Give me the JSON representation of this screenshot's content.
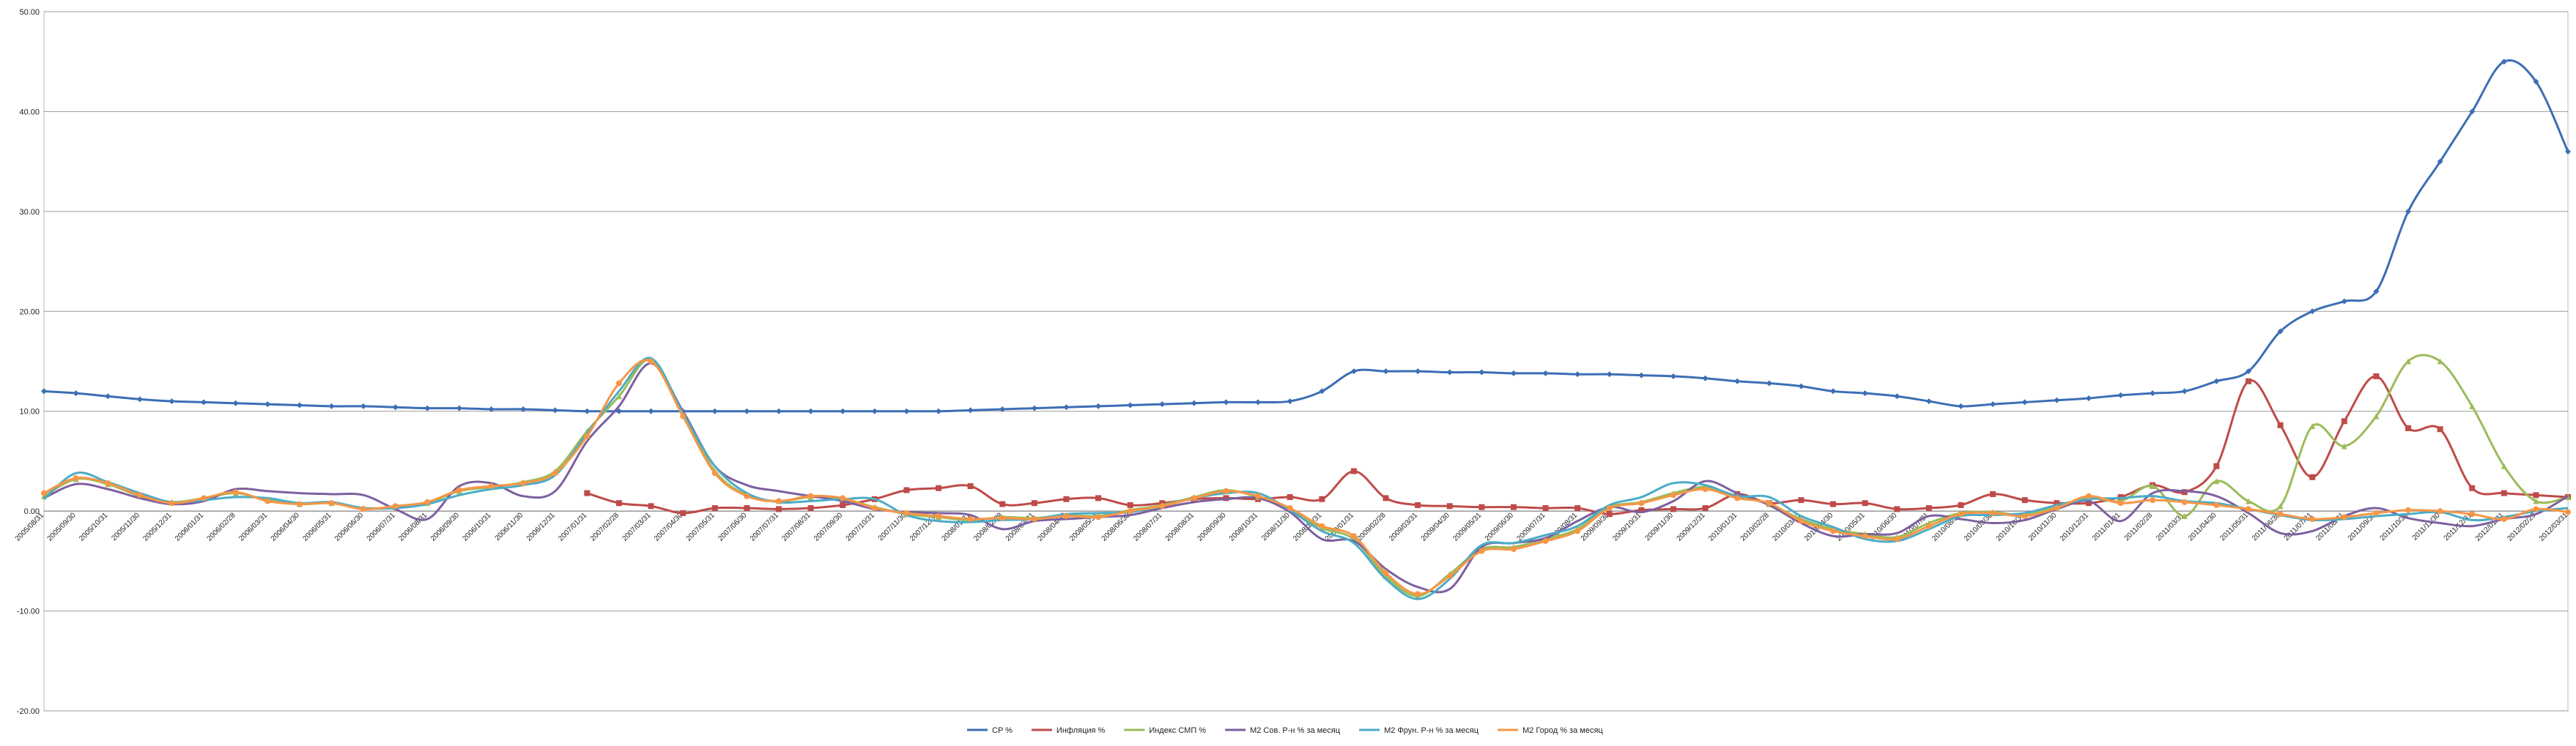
{
  "chart_data": {
    "type": "line",
    "categories": [
      "2005/08/31",
      "2005/09/30",
      "2005/10/31",
      "2005/11/30",
      "2005/12/31",
      "2006/01/31",
      "2006/02/28",
      "2006/03/31",
      "2006/04/30",
      "2006/05/31",
      "2006/06/30",
      "2006/07/31",
      "2006/08/31",
      "2006/09/30",
      "2006/10/31",
      "2006/11/30",
      "2006/12/31",
      "2007/01/31",
      "2007/02/28",
      "2007/03/31",
      "2007/04/30",
      "2007/05/31",
      "2007/06/30",
      "2007/07/31",
      "2007/08/31",
      "2007/09/30",
      "2007/10/31",
      "2007/11/30",
      "2007/12/31",
      "2008/01/31",
      "2008/02/29",
      "2008/03/31",
      "2008/04/30",
      "2008/05/31",
      "2008/06/30",
      "2008/07/31",
      "2008/08/31",
      "2008/09/30",
      "2008/10/31",
      "2008/11/30",
      "2008/12/31",
      "2009/01/31",
      "2009/02/28",
      "2009/03/31",
      "2009/04/30",
      "2009/05/31",
      "2009/06/30",
      "2009/07/31",
      "2009/08/31",
      "2009/09/30",
      "2009/10/31",
      "2009/11/30",
      "2009/12/31",
      "2010/01/31",
      "2010/02/28",
      "2010/03/31",
      "2010/04/30",
      "2010/05/31",
      "2010/06/30",
      "2010/07/31",
      "2010/08/31",
      "2010/09/30",
      "2010/10/31",
      "2010/11/30",
      "2010/12/31",
      "2011/01/31",
      "2011/02/28",
      "2011/03/31",
      "2011/04/30",
      "2011/05/31",
      "2011/06/30",
      "2011/07/31",
      "2011/08/31",
      "2011/09/30",
      "2011/10/31",
      "2011/11/30",
      "2011/12/31",
      "2012/01/31",
      "2012/02/29",
      "2012/03/31"
    ],
    "series": [
      {
        "name": "CP %",
        "color": "#3c6eb4",
        "marker": "diamond",
        "values": [
          12,
          11.8,
          11.5,
          11.2,
          11,
          10.9,
          10.8,
          10.7,
          10.6,
          10.5,
          10.5,
          10.4,
          10.3,
          10.3,
          10.2,
          10.2,
          10.1,
          10,
          10,
          10,
          10,
          10,
          10,
          10,
          10,
          10,
          10,
          10,
          10,
          10.1,
          10.2,
          10.3,
          10.4,
          10.5,
          10.6,
          10.7,
          10.8,
          10.9,
          10.9,
          11,
          12,
          14,
          14,
          14,
          13.9,
          13.9,
          13.8,
          13.8,
          13.7,
          13.7,
          13.6,
          13.5,
          13.3,
          13,
          12.8,
          12.5,
          12,
          11.8,
          11.5,
          11,
          10.5,
          10.7,
          10.9,
          11.1,
          11.3,
          11.6,
          11.8,
          12,
          13,
          14,
          18,
          20,
          21,
          22,
          30,
          35,
          40,
          45,
          43,
          36
        ]
      },
      {
        "name": "Инфляция %",
        "color": "#be4b48",
        "marker": "square",
        "values": [
          null,
          null,
          null,
          null,
          null,
          null,
          null,
          null,
          null,
          null,
          null,
          null,
          null,
          null,
          null,
          null,
          null,
          1.8,
          0.8,
          0.5,
          -0.2,
          0.3,
          0.3,
          0.2,
          0.3,
          0.6,
          1.2,
          2.1,
          2.3,
          2.5,
          0.7,
          0.8,
          1.2,
          1.3,
          0.6,
          0.8,
          1.2,
          1.3,
          1.2,
          1.4,
          1.2,
          4.0,
          1.3,
          0.6,
          0.5,
          0.4,
          0.4,
          0.3,
          0.3,
          -0.3,
          0.1,
          0.2,
          0.3,
          1.7,
          0.8,
          1.1,
          0.7,
          0.8,
          0.2,
          0.3,
          0.6,
          1.7,
          1.1,
          0.8,
          0.8,
          1.4,
          2.6,
          1.9,
          4.5,
          13.0,
          8.6,
          3.4,
          9.0,
          13.5,
          8.3,
          8.2,
          2.3,
          1.8,
          1.6,
          1.4
        ]
      },
      {
        "name": "Индекс  СМП %",
        "color": "#9bbb59",
        "marker": "triangle",
        "values": [
          1.5,
          3.2,
          2.7,
          1.5,
          0.9,
          1.3,
          1.8,
          1.1,
          0.7,
          0.8,
          0.3,
          0.4,
          0.8,
          2.0,
          2.4,
          2.9,
          4.0,
          8.0,
          11.5,
          15.2,
          9.8,
          4.0,
          1.6,
          1.0,
          1.4,
          1.2,
          0.4,
          -0.3,
          -0.6,
          -0.9,
          -0.6,
          -0.7,
          -0.4,
          -0.5,
          0.1,
          0.6,
          1.4,
          2.1,
          1.4,
          0.2,
          -1.7,
          -2.8,
          -6.5,
          -8.5,
          -6.3,
          -3.8,
          -3.6,
          -2.8,
          -1.8,
          0.4,
          0.9,
          1.8,
          2.4,
          1.5,
          0.7,
          -0.8,
          -1.8,
          -2.3,
          -2.6,
          -1.2,
          -0.2,
          -0.1,
          -0.4,
          0.5,
          1.3,
          1.0,
          2.5,
          -0.5,
          3.0,
          1.0,
          0.5,
          8.5,
          6.5,
          9.5,
          15.0,
          15.0,
          10.5,
          4.5,
          1.0,
          1.4
        ]
      },
      {
        "name": "М2 Сов. Р-н % за месяц",
        "color": "#7d60a0",
        "marker": "none",
        "values": [
          1.3,
          2.7,
          2.2,
          1.3,
          0.7,
          1.0,
          2.2,
          2.0,
          1.8,
          1.7,
          1.6,
          0.2,
          -0.8,
          2.5,
          2.8,
          1.5,
          2.0,
          7.0,
          10.5,
          14.8,
          10.0,
          4.5,
          2.6,
          2.0,
          1.5,
          1.0,
          0.2,
          -0.1,
          -0.2,
          -0.4,
          -1.8,
          -1.0,
          -0.8,
          -0.6,
          -0.4,
          0.3,
          0.9,
          1.2,
          1.3,
          -0.1,
          -2.8,
          -3.0,
          -5.8,
          -7.6,
          -7.8,
          -3.6,
          -3.2,
          -2.7,
          -1.0,
          0.4,
          -0.1,
          1.0,
          3.0,
          1.8,
          0.6,
          -1.2,
          -2.5,
          -2.3,
          -2.2,
          -0.5,
          -0.8,
          -1.2,
          -0.9,
          0.2,
          1.0,
          -1.0,
          1.8,
          2.0,
          1.5,
          -0.2,
          -2.2,
          -2.0,
          -0.5,
          0.3,
          -0.7,
          -1.2,
          -1.5,
          -0.8,
          -0.3,
          1.5
        ]
      },
      {
        "name": "М2 Фрун. Р-н % за месяц",
        "color": "#4bacc6",
        "marker": "none",
        "values": [
          1.2,
          3.8,
          2.9,
          1.8,
          0.9,
          1.1,
          1.4,
          1.3,
          0.8,
          0.9,
          0.3,
          0.3,
          0.7,
          1.6,
          2.2,
          2.6,
          3.6,
          7.8,
          12.0,
          15.3,
          9.8,
          4.5,
          1.8,
          0.9,
          1.0,
          1.2,
          1.2,
          -0.4,
          -1.0,
          -1.1,
          -0.9,
          -0.8,
          -0.3,
          -0.2,
          -0.1,
          0.5,
          1.3,
          1.8,
          1.8,
          0.1,
          -2.0,
          -3.2,
          -6.8,
          -8.8,
          -6.8,
          -3.4,
          -3.2,
          -2.4,
          -1.5,
          0.6,
          1.4,
          2.8,
          2.6,
          1.5,
          1.4,
          -0.5,
          -1.6,
          -2.8,
          -3.0,
          -1.8,
          -0.5,
          -0.4,
          -0.2,
          0.6,
          1.2,
          1.3,
          1.5,
          1.0,
          0.8,
          0.2,
          -0.4,
          -0.9,
          -0.8,
          -0.5,
          -0.3,
          -0.1,
          -0.9,
          -0.6,
          0,
          0.3
        ]
      },
      {
        "name": "М2 Город % за месяц",
        "color": "#f79646",
        "marker": "circle",
        "values": [
          1.8,
          3.3,
          2.8,
          1.6,
          0.8,
          1.3,
          1.9,
          1.0,
          0.7,
          0.8,
          0.2,
          0.5,
          0.9,
          2.1,
          2.5,
          2.8,
          3.8,
          7.5,
          12.8,
          15.0,
          9.5,
          3.8,
          1.5,
          1.0,
          1.5,
          1.3,
          0.3,
          -0.2,
          -0.5,
          -0.8,
          -0.7,
          -0.8,
          -0.5,
          -0.6,
          0,
          0.5,
          1.3,
          2.0,
          1.5,
          0.3,
          -1.5,
          -2.5,
          -6.2,
          -8.3,
          -6.5,
          -4.0,
          -3.8,
          -3.0,
          -2.0,
          0.3,
          0.8,
          1.6,
          2.2,
          1.3,
          0.8,
          -1.0,
          -2.0,
          -2.5,
          -2.8,
          -1.5,
          -0.3,
          -0.2,
          -0.5,
          0.3,
          1.5,
          0.8,
          1.1,
          0.9,
          0.6,
          0.2,
          -0.3,
          -0.8,
          -0.6,
          -0.2,
          0.1,
          0,
          -0.3,
          -0.8,
          0.2,
          -0.1
        ]
      }
    ],
    "ylim": [
      -20,
      50
    ],
    "yticks": [
      {
        "value": -20,
        "label": "-20.00"
      },
      {
        "value": -10,
        "label": "-10.00"
      },
      {
        "value": 0,
        "label": "0.00"
      },
      {
        "value": 10,
        "label": "10.00"
      },
      {
        "value": 20,
        "label": "20.00"
      },
      {
        "value": 30,
        "label": "30.00"
      },
      {
        "value": 40,
        "label": "40.00"
      },
      {
        "value": 50,
        "label": "50.00"
      }
    ],
    "grid": true,
    "legend": "bottom"
  }
}
